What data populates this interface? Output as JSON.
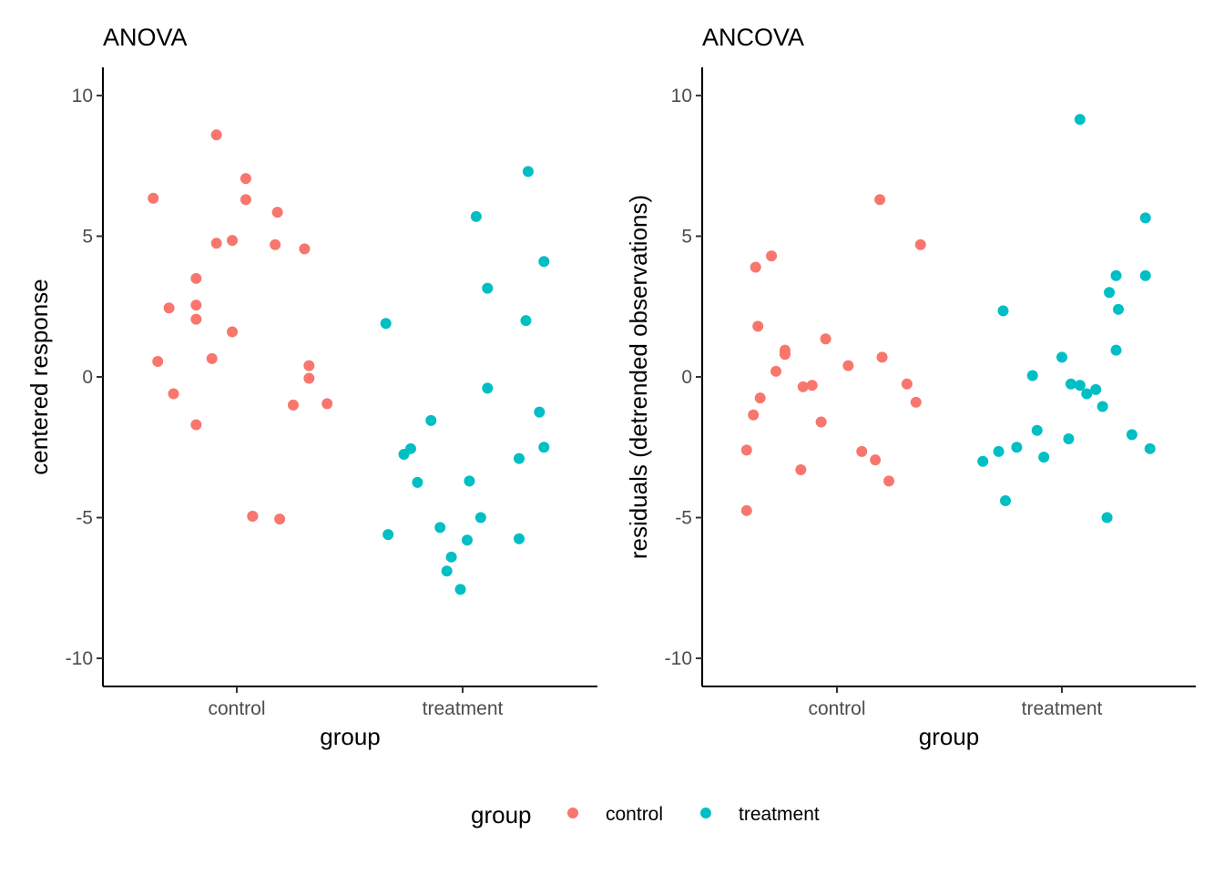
{
  "colors": {
    "control": "#F8766D",
    "treatment": "#00BFC4"
  },
  "legend": {
    "title": "group",
    "labels": [
      "control",
      "treatment"
    ],
    "placement": "bottom"
  },
  "chart_data": [
    {
      "type": "scatter",
      "title": "ANOVA",
      "xlabel": "group",
      "ylabel": "centered response",
      "categories": [
        "control",
        "treatment"
      ],
      "ylim": [
        -11,
        11
      ],
      "yticks": [
        -10,
        -5,
        0,
        5,
        10
      ],
      "ytick_labels": [
        "-10",
        "-5",
        "0",
        "5",
        "10"
      ],
      "grid": false,
      "series": [
        {
          "name": "control",
          "x": [
            -0.37,
            -0.35,
            -0.3,
            -0.28,
            -0.18,
            -0.18,
            -0.18,
            -0.18,
            -0.11,
            -0.09,
            -0.09,
            -0.02,
            -0.02,
            0.04,
            0.04,
            0.07,
            0.17,
            0.18,
            0.19,
            0.25,
            0.3,
            0.32,
            0.32,
            0.4,
            0.07
          ],
          "y": [
            6.35,
            0.55,
            2.45,
            -0.6,
            3.5,
            2.55,
            2.05,
            -1.7,
            0.65,
            4.75,
            8.6,
            1.6,
            4.85,
            6.3,
            7.05,
            -4.95,
            4.7,
            5.85,
            -5.05,
            -1.0,
            4.55,
            -0.05,
            0.4,
            -0.95,
            -4.95
          ]
        },
        {
          "name": "treatment",
          "x": [
            -0.34,
            -0.33,
            -0.26,
            -0.23,
            -0.2,
            -0.14,
            -0.1,
            -0.07,
            -0.05,
            -0.01,
            0.02,
            0.03,
            0.06,
            0.08,
            0.11,
            0.11,
            0.25,
            0.25,
            0.28,
            0.29,
            0.34,
            0.36,
            0.36
          ],
          "y": [
            1.9,
            -5.6,
            -2.75,
            -2.55,
            -3.75,
            -1.55,
            -5.35,
            -6.9,
            -6.4,
            -7.55,
            -5.8,
            -3.7,
            5.7,
            -5.0,
            3.15,
            -0.4,
            -2.9,
            -5.75,
            2.0,
            7.3,
            -1.25,
            4.1,
            -2.5
          ]
        }
      ]
    },
    {
      "type": "scatter",
      "title": "ANCOVA",
      "xlabel": "group",
      "ylabel": "residuals (detrended observations)",
      "categories": [
        "control",
        "treatment"
      ],
      "ylim": [
        -11,
        11
      ],
      "yticks": [
        -10,
        -5,
        0,
        5,
        10
      ],
      "ytick_labels": [
        "-10",
        "-5",
        "0",
        "5",
        "10"
      ],
      "grid": false,
      "series": [
        {
          "name": "control",
          "x": [
            -0.4,
            -0.4,
            -0.37,
            -0.36,
            -0.35,
            -0.34,
            -0.29,
            -0.27,
            -0.23,
            -0.23,
            -0.16,
            -0.15,
            -0.11,
            -0.07,
            -0.05,
            0.05,
            0.11,
            0.17,
            0.19,
            0.2,
            0.23,
            0.31,
            0.35,
            0.37,
            -0.23
          ],
          "y": [
            -4.75,
            -2.6,
            -1.35,
            3.9,
            1.8,
            -0.75,
            4.3,
            0.2,
            0.95,
            0.8,
            -3.3,
            -0.35,
            -0.3,
            -1.6,
            1.35,
            0.4,
            -2.65,
            -2.95,
            6.3,
            0.7,
            -3.7,
            -0.25,
            -0.9,
            4.7,
            0.85
          ]
        },
        {
          "name": "treatment",
          "x": [
            -0.35,
            -0.28,
            -0.26,
            -0.25,
            -0.2,
            -0.13,
            -0.11,
            -0.08,
            0.0,
            0.03,
            0.04,
            0.08,
            0.11,
            0.15,
            0.18,
            0.2,
            0.21,
            0.24,
            0.24,
            0.25,
            0.31,
            0.37,
            0.37,
            0.39,
            0.08
          ],
          "y": [
            -3.0,
            -2.65,
            2.35,
            -4.4,
            -2.5,
            0.05,
            -1.9,
            -2.85,
            0.7,
            -2.2,
            -0.25,
            9.15,
            -0.6,
            -0.45,
            -1.05,
            -5.0,
            3.0,
            0.95,
            3.6,
            2.4,
            -2.05,
            3.6,
            5.65,
            -2.55,
            -0.3
          ]
        }
      ]
    }
  ]
}
